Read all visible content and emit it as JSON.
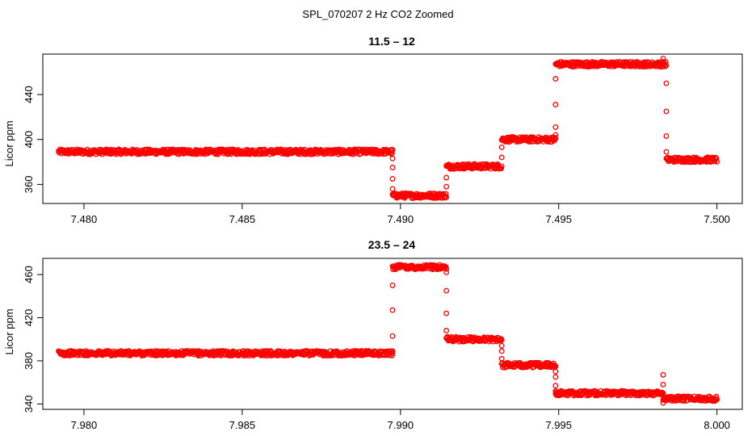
{
  "figure": {
    "title": "SPL_070207  2 Hz CO2 Zoomed"
  },
  "chart_data": [
    {
      "type": "scatter",
      "title": "11.5 – 12",
      "xlabel": "",
      "ylabel": "Licor ppm",
      "xlim": [
        7.4787,
        7.5008
      ],
      "ylim": [
        343,
        476
      ],
      "xticks": [
        7.48,
        7.485,
        7.49,
        7.495,
        7.5
      ],
      "xtick_labels": [
        "7.480",
        "7.485",
        "7.490",
        "7.495",
        "7.500"
      ],
      "yticks": [
        360,
        400,
        440
      ],
      "ytick_labels": [
        "360",
        "400",
        "440"
      ],
      "grid": false,
      "marker": "open-circle",
      "color": "#ff0000",
      "x_start": 7.4792,
      "x_end": 7.5,
      "steps": [
        {
          "x_start": 7.4792,
          "x_end": 7.48975,
          "value": 389
        },
        {
          "x_start": 7.48975,
          "x_end": 7.49145,
          "value": 350
        },
        {
          "x_start": 7.49145,
          "x_end": 7.4932,
          "value": 376
        },
        {
          "x_start": 7.4932,
          "x_end": 7.4949,
          "value": 400
        },
        {
          "x_start": 7.4949,
          "x_end": 7.4984,
          "value": 467
        },
        {
          "x_start": 7.4984,
          "x_end": 7.5,
          "value": 382
        }
      ],
      "transition_points": [
        {
          "x": 7.48975,
          "y": 383
        },
        {
          "x": 7.48975,
          "y": 375
        },
        {
          "x": 7.48975,
          "y": 365
        },
        {
          "x": 7.48975,
          "y": 356
        },
        {
          "x": 7.49145,
          "y": 358
        },
        {
          "x": 7.49145,
          "y": 366
        },
        {
          "x": 7.4932,
          "y": 384
        },
        {
          "x": 7.4932,
          "y": 393
        },
        {
          "x": 7.4949,
          "y": 404
        },
        {
          "x": 7.4949,
          "y": 411
        },
        {
          "x": 7.4949,
          "y": 431
        },
        {
          "x": 7.4949,
          "y": 454
        },
        {
          "x": 7.4983,
          "y": 472
        },
        {
          "x": 7.4984,
          "y": 450
        },
        {
          "x": 7.4984,
          "y": 425
        },
        {
          "x": 7.4984,
          "y": 403
        },
        {
          "x": 7.4984,
          "y": 389
        }
      ]
    },
    {
      "type": "scatter",
      "title": "23.5 – 24",
      "xlabel": "",
      "ylabel": "Licor ppm",
      "xlim": [
        7.9787,
        8.0008
      ],
      "ylim": [
        335,
        475
      ],
      "xticks": [
        7.98,
        7.985,
        7.99,
        7.995,
        8.0
      ],
      "xtick_labels": [
        "7.980",
        "7.985",
        "7.990",
        "7.995",
        "8.000"
      ],
      "yticks": [
        340,
        380,
        420,
        460
      ],
      "ytick_labels": [
        "340",
        "380",
        "420",
        "460"
      ],
      "grid": false,
      "marker": "open-circle",
      "color": "#ff0000",
      "x_start": 7.9792,
      "x_end": 8.0,
      "steps": [
        {
          "x_start": 7.9792,
          "x_end": 7.98975,
          "value": 387
        },
        {
          "x_start": 7.98975,
          "x_end": 7.99145,
          "value": 467
        },
        {
          "x_start": 7.99145,
          "x_end": 7.9932,
          "value": 400
        },
        {
          "x_start": 7.9932,
          "x_end": 7.9949,
          "value": 376
        },
        {
          "x_start": 7.9949,
          "x_end": 7.9983,
          "value": 350
        },
        {
          "x_start": 7.9983,
          "x_end": 8.0,
          "value": 345
        }
      ],
      "transition_points": [
        {
          "x": 7.98975,
          "y": 389
        },
        {
          "x": 7.98975,
          "y": 403
        },
        {
          "x": 7.98975,
          "y": 427
        },
        {
          "x": 7.98975,
          "y": 450
        },
        {
          "x": 7.99145,
          "y": 462
        },
        {
          "x": 7.99145,
          "y": 445
        },
        {
          "x": 7.99145,
          "y": 424
        },
        {
          "x": 7.99145,
          "y": 408
        },
        {
          "x": 7.9932,
          "y": 394
        },
        {
          "x": 7.9932,
          "y": 389
        },
        {
          "x": 7.9932,
          "y": 382
        },
        {
          "x": 7.9949,
          "y": 370
        },
        {
          "x": 7.9949,
          "y": 365
        },
        {
          "x": 7.9949,
          "y": 357
        },
        {
          "x": 7.9949,
          "y": 352
        },
        {
          "x": 7.9983,
          "y": 367
        },
        {
          "x": 7.9983,
          "y": 358
        },
        {
          "x": 7.9983,
          "y": 350
        },
        {
          "x": 7.9983,
          "y": 341
        }
      ]
    }
  ]
}
